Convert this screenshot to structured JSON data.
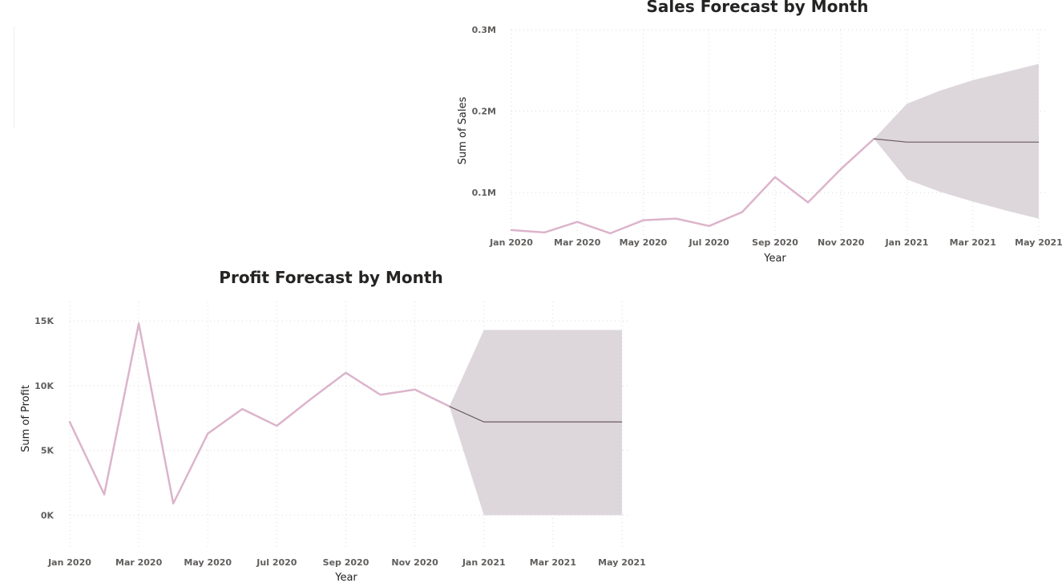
{
  "colors": {
    "actual_line": "#dcb4cb",
    "forecast_line": "#6b5a62",
    "confidence_band": "#ddd7dc",
    "gridline": "#d9d9d9",
    "tick_text": "#605e5c",
    "title_text": "#252423"
  },
  "chart_data": [
    {
      "type": "line",
      "title": "Sales Forecast by Month",
      "xlabel": "Year",
      "ylabel": "Sum of Sales",
      "grid": true,
      "x_ticks": [
        "Jan 2020",
        "Mar 2020",
        "May 2020",
        "Jul 2020",
        "Sep 2020",
        "Nov 2020",
        "Jan 2021",
        "Mar 2021",
        "May 2021"
      ],
      "y_ticks": [
        {
          "value": 100000,
          "label": "0.1M"
        },
        {
          "value": 200000,
          "label": "0.2M"
        },
        {
          "value": 300000,
          "label": "0.3M"
        }
      ],
      "ylim": [
        46000,
        300000
      ],
      "x": [
        "Jan 2020",
        "Feb 2020",
        "Mar 2020",
        "Apr 2020",
        "May 2020",
        "Jun 2020",
        "Jul 2020",
        "Aug 2020",
        "Sep 2020",
        "Oct 2020",
        "Nov 2020",
        "Dec 2020"
      ],
      "series": [
        {
          "values": [
            54000,
            51000,
            64000,
            50000,
            66000,
            68000,
            59000,
            76000,
            119000,
            88000,
            129000,
            166000
          ]
        }
      ],
      "forecast": {
        "x": [
          "Dec 2020",
          "Jan 2021",
          "Feb 2021",
          "Mar 2021",
          "Apr 2021",
          "May 2021"
        ],
        "values": [
          166000,
          162000,
          162000,
          162000,
          162000,
          162000
        ],
        "upper": [
          166000,
          209000,
          225000,
          238000,
          248000,
          258000
        ],
        "lower": [
          166000,
          116000,
          101000,
          89000,
          78000,
          68000
        ]
      }
    },
    {
      "type": "line",
      "title": "Profit Forecast by Month",
      "xlabel": "Year",
      "ylabel": "Sum of Profit",
      "grid": true,
      "x_ticks": [
        "Jan 2020",
        "Mar 2020",
        "May 2020",
        "Jul 2020",
        "Sep 2020",
        "Nov 2020",
        "Jan 2021",
        "Mar 2021",
        "May 2021"
      ],
      "y_ticks": [
        {
          "value": 0,
          "label": "0K"
        },
        {
          "value": 5000,
          "label": "5K"
        },
        {
          "value": 10000,
          "label": "10K"
        },
        {
          "value": 15000,
          "label": "15K"
        }
      ],
      "ylim": [
        -2700,
        16500
      ],
      "x": [
        "Jan 2020",
        "Feb 2020",
        "Mar 2020",
        "Apr 2020",
        "May 2020",
        "Jun 2020",
        "Jul 2020",
        "Aug 2020",
        "Sep 2020",
        "Oct 2020",
        "Nov 2020",
        "Dec 2020"
      ],
      "series": [
        {
          "values": [
            7200,
            1600,
            14800,
            900,
            6300,
            8200,
            6900,
            9000,
            11000,
            9300,
            9700,
            8400
          ]
        }
      ],
      "forecast": {
        "x": [
          "Dec 2020",
          "Jan 2021",
          "Feb 2021",
          "Mar 2021",
          "Apr 2021",
          "May 2021"
        ],
        "values": [
          8400,
          7200,
          7200,
          7200,
          7200,
          7200
        ],
        "upper": [
          8400,
          14300,
          14300,
          14300,
          14300,
          14300
        ],
        "lower": [
          8400,
          0,
          0,
          0,
          0,
          0
        ]
      }
    }
  ]
}
